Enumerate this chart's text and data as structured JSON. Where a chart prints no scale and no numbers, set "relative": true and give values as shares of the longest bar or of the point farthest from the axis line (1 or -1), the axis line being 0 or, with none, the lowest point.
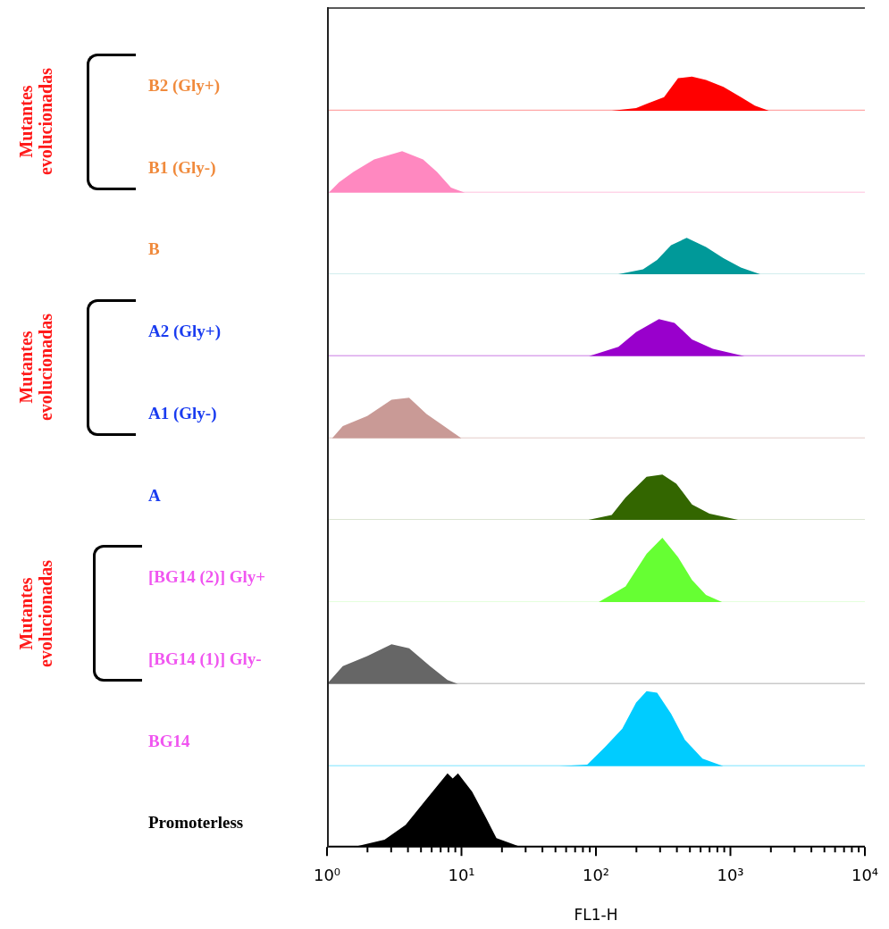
{
  "chart_data": [
    {
      "type": "area",
      "relative": true,
      "log": "x",
      "xlim": [
        1,
        10000
      ],
      "tick_labels": false,
      "marker": "none",
      "annotations": [
        "Mutantes evolucionadas"
      ],
      "series": [
        {
          "name": "B2 (Gly+)",
          "color": "#ff0000",
          "x": [
            131,
            199,
            238,
            321,
            408,
            518,
            658,
            887,
            1197,
            1520,
            1932
          ],
          "values": [
            0,
            0.08,
            0.2,
            0.4,
            0.95,
            1,
            0.9,
            0.7,
            0.4,
            0.15,
            0
          ]
        }
      ]
    },
    {
      "type": "area",
      "relative": true,
      "log": "x",
      "xlim": [
        1,
        10000
      ],
      "tick_labels": false,
      "marker": "none",
      "series": [
        {
          "name": "B1 (Gly-)",
          "color": "#ff88c0",
          "x": [
            1.03,
            1.23,
            1.57,
            2.24,
            3.62,
            5.18,
            6.58,
            8.36,
            10.6
          ],
          "values": [
            0,
            0.25,
            0.5,
            0.8,
            1,
            0.8,
            0.5,
            0.12,
            0
          ]
        }
      ]
    },
    {
      "type": "area",
      "relative": true,
      "log": "x",
      "xlim": [
        1,
        10000
      ],
      "tick_labels": false,
      "marker": "none",
      "series": [
        {
          "name": "B",
          "color": "#009999",
          "x": [
            139,
            224,
            285,
            362,
            473,
            658,
            887,
            1197,
            1714
          ],
          "values": [
            0,
            0.15,
            0.4,
            0.8,
            1,
            0.75,
            0.45,
            0.2,
            0
          ]
        }
      ]
    },
    {
      "type": "area",
      "relative": true,
      "log": "x",
      "xlim": [
        1,
        10000
      ],
      "tick_labels": false,
      "marker": "none",
      "annotations": [
        "Mutantes evolucionadas"
      ],
      "series": [
        {
          "name": "A2 (Gly+)",
          "color": "#9900cc",
          "x": [
            88.7,
            147,
            199,
            294,
            384,
            518,
            741,
            1271
          ],
          "values": [
            0,
            0.25,
            0.65,
            1,
            0.9,
            0.45,
            0.2,
            0
          ]
        }
      ]
    },
    {
      "type": "area",
      "relative": true,
      "log": "x",
      "xlim": [
        1,
        10000
      ],
      "tick_labels": false,
      "marker": "none",
      "series": [
        {
          "name": "A1 (Gly-)",
          "color": "#c99a96",
          "x": [
            1.09,
            1.31,
            1.99,
            3.02,
            4.08,
            5.5,
            7.41,
            10
          ],
          "values": [
            0,
            0.3,
            0.55,
            0.95,
            1,
            0.6,
            0.3,
            0
          ]
        }
      ]
    },
    {
      "type": "area",
      "relative": true,
      "log": "x",
      "xlim": [
        1,
        10000
      ],
      "tick_labels": false,
      "marker": "none",
      "series": [
        {
          "name": "A",
          "color": "#336600",
          "x": [
            83.6,
            131,
            166,
            238,
            312,
            396,
            518,
            698,
            1197
          ],
          "values": [
            0,
            0.12,
            0.5,
            0.95,
            1,
            0.8,
            0.35,
            0.15,
            0
          ]
        }
      ]
    },
    {
      "type": "area",
      "relative": true,
      "log": "x",
      "xlim": [
        1,
        10000
      ],
      "tick_labels": false,
      "marker": "none",
      "annotations": [
        "Mutantes evolucionadas"
      ],
      "series": [
        {
          "name": "[BG14 (2)] Gly+",
          "color": "#66ff33",
          "x": [
            103,
            166,
            238,
            312,
            408,
            518,
            658,
            887
          ],
          "values": [
            0,
            0.25,
            0.75,
            1,
            0.7,
            0.35,
            0.12,
            0
          ]
        }
      ]
    },
    {
      "type": "area",
      "relative": true,
      "log": "x",
      "xlim": [
        1,
        10000
      ],
      "tick_labels": false,
      "marker": "none",
      "series": [
        {
          "name": "[BG14 (1)] Gly-",
          "color": "#666666",
          "x": [
            1,
            1.31,
            1.99,
            3.02,
            4.08,
            5.84,
            7.87,
            9.42
          ],
          "values": [
            0,
            0.45,
            0.7,
            1,
            0.9,
            0.45,
            0.1,
            0
          ]
        }
      ]
    },
    {
      "type": "area",
      "relative": true,
      "log": "x",
      "xlim": [
        1,
        10000
      ],
      "tick_labels": false,
      "marker": "none",
      "series": [
        {
          "name": "BG14",
          "color": "#00ccff",
          "x": [
            53.4,
            86.1,
            116,
            157,
            199,
            238,
            285,
            362,
            459,
            620,
            887
          ],
          "values": [
            0,
            0.02,
            0.25,
            0.5,
            0.85,
            1,
            0.98,
            0.7,
            0.35,
            0.1,
            0
          ]
        }
      ]
    },
    {
      "type": "area",
      "relative": true,
      "log": "x",
      "xlim": [
        1,
        10000
      ],
      "tick_labels": "x",
      "marker": "none",
      "xlabel": "FL1-H",
      "xticks": [
        {
          "value": 1,
          "label": "10⁰"
        },
        {
          "value": 2,
          "label": null
        },
        {
          "value": 3,
          "label": null
        },
        {
          "value": 4,
          "label": null
        },
        {
          "value": 5,
          "label": null
        },
        {
          "value": 6,
          "label": null
        },
        {
          "value": 7,
          "label": null
        },
        {
          "value": 8,
          "label": null
        },
        {
          "value": 9,
          "label": null
        },
        {
          "value": 10,
          "label": "10¹"
        },
        {
          "value": 20,
          "label": null
        },
        {
          "value": 30,
          "label": null
        },
        {
          "value": 40,
          "label": null
        },
        {
          "value": 50,
          "label": null
        },
        {
          "value": 60,
          "label": null
        },
        {
          "value": 70,
          "label": null
        },
        {
          "value": 80,
          "label": null
        },
        {
          "value": 90,
          "label": null
        },
        {
          "value": 100,
          "label": "10²"
        },
        {
          "value": 200,
          "label": null
        },
        {
          "value": 300,
          "label": null
        },
        {
          "value": 400,
          "label": null
        },
        {
          "value": 500,
          "label": null
        },
        {
          "value": 600,
          "label": null
        },
        {
          "value": 700,
          "label": null
        },
        {
          "value": 800,
          "label": null
        },
        {
          "value": 900,
          "label": null
        },
        {
          "value": 1000,
          "label": "10³"
        },
        {
          "value": 2000,
          "label": null
        },
        {
          "value": 3000,
          "label": null
        },
        {
          "value": 4000,
          "label": null
        },
        {
          "value": 5000,
          "label": null
        },
        {
          "value": 6000,
          "label": null
        },
        {
          "value": 7000,
          "label": null
        },
        {
          "value": 8000,
          "label": null
        },
        {
          "value": 9000,
          "label": null
        },
        {
          "value": 10000,
          "label": "10⁴"
        }
      ],
      "series": [
        {
          "name": "Promoterless",
          "color": "#000000",
          "x": [
            1.57,
            2.68,
            3.84,
            5.5,
            7.87,
            8.61,
            9.42,
            12,
            15.2,
            18.2,
            27.7
          ],
          "values": [
            0,
            0.1,
            0.3,
            0.65,
            1,
            0.93,
            1,
            0.75,
            0.4,
            0.12,
            0
          ]
        }
      ]
    }
  ]
}
